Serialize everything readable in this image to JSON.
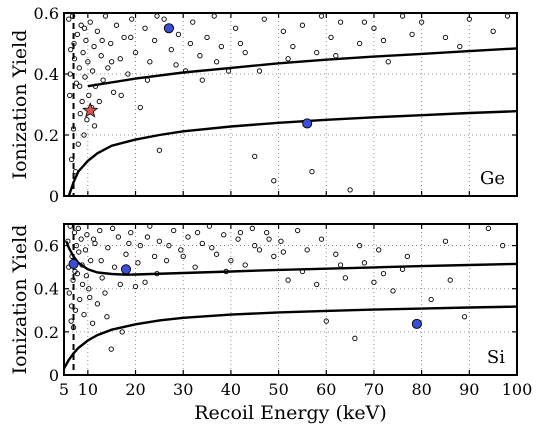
{
  "chart_data": [
    {
      "type": "scatter",
      "panel_label": "Ge",
      "xlabel": "",
      "ylabel": "Ionization Yield",
      "xlim": [
        5,
        100
      ],
      "ylim": [
        0,
        0.6
      ],
      "yticks": [
        "0",
        "0.2",
        "0.4",
        "0.6"
      ],
      "grid": "dotted",
      "threshold_x": 7,
      "upper_band": {
        "x": [
          10,
          20,
          30,
          40,
          50,
          60,
          70,
          80,
          90,
          100
        ],
        "y": [
          0.36,
          0.385,
          0.405,
          0.42,
          0.435,
          0.447,
          0.457,
          0.466,
          0.475,
          0.484
        ]
      },
      "lower_band": {
        "x": [
          6,
          7,
          8,
          10,
          12,
          15,
          20,
          25,
          30,
          40,
          50,
          60,
          70,
          80,
          90,
          100
        ],
        "y": [
          0.0,
          0.045,
          0.08,
          0.115,
          0.14,
          0.165,
          0.185,
          0.2,
          0.212,
          0.228,
          0.24,
          0.25,
          0.258,
          0.265,
          0.272,
          0.278
        ]
      },
      "highlighted_events": [
        {
          "x": 27,
          "y": 0.55
        },
        {
          "x": 56,
          "y": 0.238
        }
      ],
      "star_event": {
        "x": 10.5,
        "y": 0.28
      },
      "background_events": [
        [
          6.0,
          0.58
        ],
        [
          6.2,
          0.33
        ],
        [
          6.4,
          0.48
        ],
        [
          6.6,
          0.12
        ],
        [
          6.8,
          0.59
        ],
        [
          7.0,
          0.22
        ],
        [
          7.2,
          0.45
        ],
        [
          7.4,
          0.08
        ],
        [
          7.6,
          0.37
        ],
        [
          7.8,
          0.53
        ],
        [
          8.0,
          0.17
        ],
        [
          8.2,
          0.42
        ],
        [
          8.4,
          0.27
        ],
        [
          8.6,
          0.56
        ],
        [
          8.8,
          0.31
        ],
        [
          9.0,
          0.47
        ],
        [
          9.2,
          0.2
        ],
        [
          9.4,
          0.39
        ],
        [
          9.6,
          0.51
        ],
        [
          9.8,
          0.25
        ],
        [
          10.0,
          0.44
        ],
        [
          10.2,
          0.33
        ],
        [
          10.5,
          0.57
        ],
        [
          10.8,
          0.29
        ],
        [
          11.0,
          0.41
        ],
        [
          11.3,
          0.49
        ],
        [
          11.6,
          0.36
        ],
        [
          12.0,
          0.54
        ],
        [
          12.4,
          0.31
        ],
        [
          12.8,
          0.46
        ],
        [
          13.2,
          0.38
        ],
        [
          13.7,
          0.59
        ],
        [
          14.2,
          0.42
        ],
        [
          14.8,
          0.5
        ],
        [
          15.4,
          0.34
        ],
        [
          16.0,
          0.56
        ],
        [
          16.8,
          0.45
        ],
        [
          17.6,
          0.52
        ],
        [
          18.4,
          0.4
        ],
        [
          19.2,
          0.58
        ],
        [
          20.0,
          0.47
        ],
        [
          21.0,
          0.29
        ],
        [
          22.0,
          0.55
        ],
        [
          23.0,
          0.44
        ],
        [
          24.0,
          0.51
        ],
        [
          25.0,
          0.15
        ],
        [
          26.0,
          0.58
        ],
        [
          27.5,
          0.48
        ],
        [
          29.0,
          0.53
        ],
        [
          30.5,
          0.41
        ],
        [
          32.0,
          0.57
        ],
        [
          33.5,
          0.46
        ],
        [
          35.0,
          0.52
        ],
        [
          36.5,
          0.59
        ],
        [
          38.0,
          0.49
        ],
        [
          39.5,
          0.41
        ],
        [
          41.0,
          0.55
        ],
        [
          43.0,
          0.47
        ],
        [
          45.0,
          0.13
        ],
        [
          47.0,
          0.58
        ],
        [
          49.0,
          0.05
        ],
        [
          51.0,
          0.54
        ],
        [
          53.0,
          0.49
        ],
        [
          55.0,
          0.56
        ],
        [
          57.0,
          0.08
        ],
        [
          59.0,
          0.59
        ],
        [
          61.0,
          0.52
        ],
        [
          63.0,
          0.57
        ],
        [
          65.0,
          0.02
        ],
        [
          67.0,
          0.5
        ],
        [
          70.0,
          0.55
        ],
        [
          73.0,
          0.44
        ],
        [
          76.0,
          0.59
        ],
        [
          80.0,
          0.57
        ],
        [
          85.0,
          0.52
        ],
        [
          90.0,
          0.58
        ],
        [
          95.0,
          0.54
        ],
        [
          6.3,
          0.4
        ],
        [
          7.1,
          0.5
        ],
        [
          8.3,
          0.36
        ],
        [
          9.3,
          0.55
        ],
        [
          11.4,
          0.23
        ],
        [
          13.0,
          0.51
        ],
        [
          15.0,
          0.44
        ],
        [
          17.0,
          0.33
        ],
        [
          19.0,
          0.52
        ],
        [
          22.5,
          0.38
        ],
        [
          24.5,
          0.59
        ],
        [
          28.5,
          0.43
        ],
        [
          31.5,
          0.5
        ],
        [
          34.0,
          0.38
        ],
        [
          37.0,
          0.44
        ],
        [
          42.0,
          0.5
        ],
        [
          46.0,
          0.41
        ],
        [
          52.0,
          0.45
        ],
        [
          58.0,
          0.47
        ],
        [
          62.0,
          0.46
        ],
        [
          68.0,
          0.57
        ],
        [
          72.0,
          0.51
        ],
        [
          78.0,
          0.53
        ],
        [
          88.0,
          0.49
        ],
        [
          98.0,
          0.59
        ]
      ]
    },
    {
      "type": "scatter",
      "panel_label": "Si",
      "xlabel": "Recoil Energy (keV)",
      "ylabel": "Ionization Yield",
      "xlim": [
        5,
        100
      ],
      "ylim": [
        0,
        0.7
      ],
      "yticks": [
        "0",
        "0.2",
        "0.4",
        "0.6"
      ],
      "xticks": [
        "5",
        "10",
        "20",
        "30",
        "40",
        "50",
        "60",
        "70",
        "80",
        "90",
        "100"
      ],
      "grid": "dotted",
      "threshold_x": 7,
      "upper_band": {
        "x": [
          5.5,
          6,
          7,
          8,
          10,
          12,
          15,
          18,
          20,
          30,
          40,
          50,
          60,
          70,
          80,
          90,
          100
        ],
        "y": [
          0.62,
          0.59,
          0.55,
          0.52,
          0.49,
          0.475,
          0.468,
          0.465,
          0.466,
          0.473,
          0.48,
          0.487,
          0.493,
          0.499,
          0.505,
          0.51,
          0.515
        ]
      },
      "lower_band": {
        "x": [
          5,
          6,
          7,
          8,
          10,
          12,
          15,
          20,
          25,
          30,
          40,
          50,
          60,
          70,
          80,
          90,
          100
        ],
        "y": [
          0.03,
          0.07,
          0.1,
          0.125,
          0.16,
          0.185,
          0.21,
          0.235,
          0.253,
          0.265,
          0.28,
          0.29,
          0.297,
          0.303,
          0.308,
          0.313,
          0.317
        ]
      },
      "highlighted_events": [
        {
          "x": 7,
          "y": 0.515
        },
        {
          "x": 18,
          "y": 0.49
        },
        {
          "x": 79,
          "y": 0.237
        }
      ],
      "background_events": [
        [
          5.8,
          0.62
        ],
        [
          6.1,
          0.38
        ],
        [
          6.3,
          0.69
        ],
        [
          6.5,
          0.25
        ],
        [
          6.7,
          0.55
        ],
        [
          6.9,
          0.44
        ],
        [
          7.2,
          0.66
        ],
        [
          7.4,
          0.3
        ],
        [
          7.6,
          0.6
        ],
        [
          7.8,
          0.47
        ],
        [
          8.0,
          0.68
        ],
        [
          8.3,
          0.35
        ],
        [
          8.6,
          0.63
        ],
        [
          8.9,
          0.42
        ],
        [
          9.2,
          0.28
        ],
        [
          9.5,
          0.58
        ],
        [
          9.8,
          0.65
        ],
        [
          10.2,
          0.4
        ],
        [
          10.6,
          0.53
        ],
        [
          11.0,
          0.24
        ],
        [
          11.5,
          0.61
        ],
        [
          12.0,
          0.33
        ],
        [
          12.5,
          0.67
        ],
        [
          13.0,
          0.45
        ],
        [
          13.6,
          0.38
        ],
        [
          14.2,
          0.59
        ],
        [
          14.9,
          0.12
        ],
        [
          15.6,
          0.5
        ],
        [
          16.4,
          0.64
        ],
        [
          17.2,
          0.2
        ],
        [
          18.0,
          0.56
        ],
        [
          19.0,
          0.66
        ],
        [
          20.0,
          0.41
        ],
        [
          21.0,
          0.6
        ],
        [
          22.0,
          0.43
        ],
        [
          23.0,
          0.69
        ],
        [
          24.0,
          0.55
        ],
        [
          25.0,
          0.62
        ],
        [
          26.5,
          0.53
        ],
        [
          28.0,
          0.67
        ],
        [
          29.5,
          0.58
        ],
        [
          31.0,
          0.64
        ],
        [
          32.5,
          0.5
        ],
        [
          34.0,
          0.61
        ],
        [
          35.5,
          0.69
        ],
        [
          37.0,
          0.56
        ],
        [
          38.5,
          0.65
        ],
        [
          40.0,
          0.53
        ],
        [
          41.5,
          0.63
        ],
        [
          43.0,
          0.51
        ],
        [
          44.5,
          0.68
        ],
        [
          46.0,
          0.58
        ],
        [
          47.5,
          0.66
        ],
        [
          49.0,
          0.55
        ],
        [
          50.5,
          0.62
        ],
        [
          52.0,
          0.44
        ],
        [
          54.0,
          0.67
        ],
        [
          56.0,
          0.58
        ],
        [
          58.0,
          0.42
        ],
        [
          60.0,
          0.25
        ],
        [
          62.0,
          0.56
        ],
        [
          64.0,
          0.45
        ],
        [
          66.0,
          0.17
        ],
        [
          68.0,
          0.52
        ],
        [
          70.0,
          0.43
        ],
        [
          72.0,
          0.47
        ],
        [
          74.0,
          0.39
        ],
        [
          77.0,
          0.55
        ],
        [
          82.0,
          0.35
        ],
        [
          85.0,
          0.62
        ],
        [
          89.0,
          0.27
        ],
        [
          94.0,
          0.68
        ],
        [
          6.0,
          0.5
        ],
        [
          6.6,
          0.32
        ],
        [
          7.0,
          0.22
        ],
        [
          7.3,
          0.48
        ],
        [
          8.1,
          0.57
        ],
        [
          8.8,
          0.51
        ],
        [
          9.7,
          0.46
        ],
        [
          10.4,
          0.36
        ],
        [
          11.2,
          0.63
        ],
        [
          12.8,
          0.53
        ],
        [
          14.0,
          0.27
        ],
        [
          15.2,
          0.68
        ],
        [
          16.8,
          0.42
        ],
        [
          18.6,
          0.61
        ],
        [
          20.5,
          0.52
        ],
        [
          22.5,
          0.64
        ],
        [
          24.5,
          0.47
        ],
        [
          27.0,
          0.6
        ],
        [
          30.0,
          0.55
        ],
        [
          33.0,
          0.66
        ],
        [
          36.0,
          0.59
        ],
        [
          39.0,
          0.48
        ],
        [
          42.0,
          0.66
        ],
        [
          45.0,
          0.6
        ],
        [
          48.0,
          0.63
        ],
        [
          51.0,
          0.57
        ],
        [
          55.0,
          0.48
        ],
        [
          59.0,
          0.63
        ],
        [
          63.0,
          0.51
        ],
        [
          67.0,
          0.6
        ],
        [
          71.0,
          0.58
        ],
        [
          76.0,
          0.49
        ],
        [
          86.0,
          0.44
        ],
        [
          97.0,
          0.6
        ]
      ]
    }
  ]
}
